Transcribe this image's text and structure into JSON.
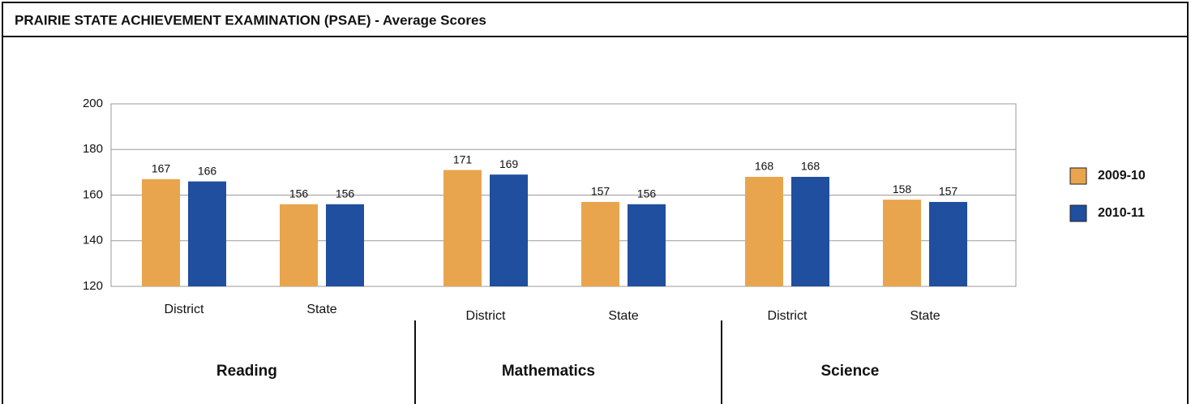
{
  "chart_data": {
    "type": "bar",
    "title": "PRAIRIE STATE ACHIEVEMENT EXAMINATION (PSAE) - Average Scores",
    "groups": [
      "Reading",
      "Mathematics",
      "Science"
    ],
    "categories": [
      "District",
      "State",
      "District",
      "State",
      "District",
      "State"
    ],
    "series": [
      {
        "name": "2009-10",
        "color": "#e8a54e",
        "values": [
          167,
          156,
          171,
          157,
          168,
          158
        ]
      },
      {
        "name": "2010-11",
        "color": "#1f4f9e",
        "values": [
          166,
          156,
          169,
          156,
          168,
          157
        ]
      }
    ],
    "ylim": [
      120,
      200
    ],
    "yticks": [
      120,
      140,
      160,
      180,
      200
    ],
    "grid": true
  }
}
